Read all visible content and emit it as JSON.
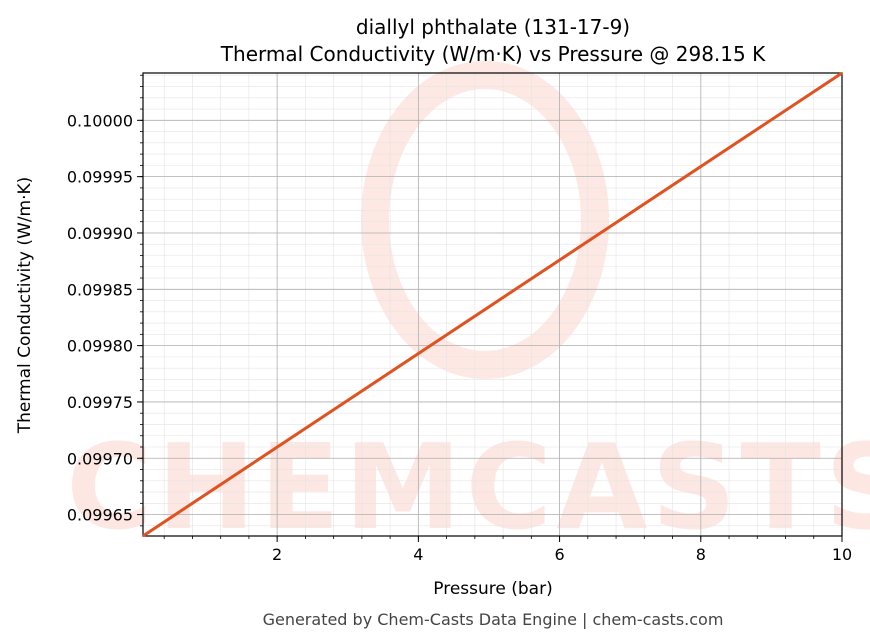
{
  "chart_data": {
    "type": "line",
    "title": "diallyl phthalate (131-17-9)",
    "subtitle": "Thermal Conductivity (W/m·K) vs Pressure @ 298.15 K",
    "xlabel": "Pressure (bar)",
    "ylabel": "Thermal Conductivity (W/m·K)",
    "xlim": [
      0.1,
      10
    ],
    "ylim": [
      0.099631,
      0.100042
    ],
    "xticks": [
      2,
      4,
      6,
      8,
      10
    ],
    "xtick_labels": [
      "2",
      "4",
      "6",
      "8",
      "10"
    ],
    "yticks": [
      0.09965,
      0.0997,
      0.09975,
      0.0998,
      0.09985,
      0.0999,
      0.09995,
      0.1
    ],
    "ytick_labels": [
      "0.09965",
      "0.09970",
      "0.09975",
      "0.09980",
      "0.09985",
      "0.09990",
      "0.09995",
      "0.10000"
    ],
    "grid": true,
    "series": [
      {
        "name": "Thermal Conductivity",
        "color": "#e0521f",
        "x": [
          0.1,
          10
        ],
        "y": [
          0.099631,
          0.100042
        ]
      }
    ],
    "watermark": "CHEMCASTS",
    "footer": "Generated by Chem-Casts Data Engine | chem-casts.com"
  }
}
